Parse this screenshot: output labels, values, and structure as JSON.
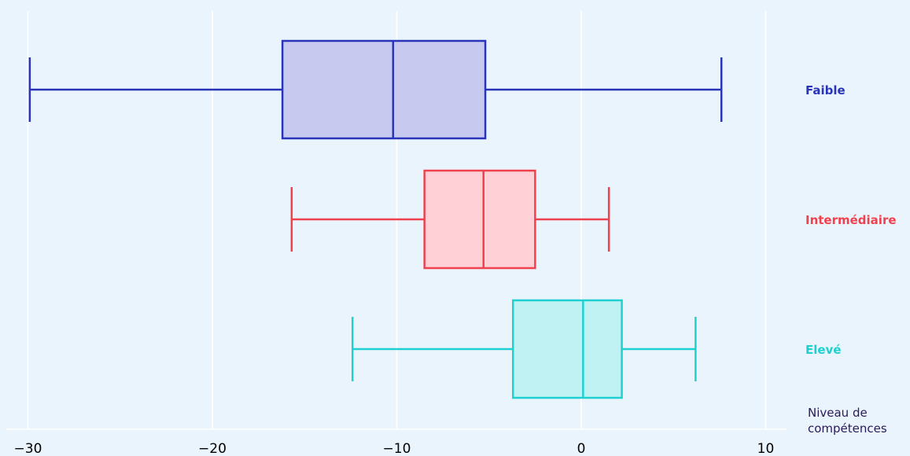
{
  "chart_data": {
    "type": "boxplot",
    "orientation": "horizontal",
    "title": "",
    "xlabel": "",
    "xlim": [
      -30.4,
      10.2
    ],
    "x_ticks": [
      -30,
      -20,
      -10,
      0,
      10
    ],
    "x_tick_labels": [
      "−30",
      "−20",
      "−10",
      "0",
      "10"
    ],
    "grid": "vertical",
    "legend_title": [
      "Niveau de",
      "compétences"
    ],
    "series": [
      {
        "name": "Faible",
        "color": "#2a34b8",
        "fill": "#c7c9ef",
        "whisker_low": -29.9,
        "q1": -16.2,
        "median": -10.2,
        "q3": -5.2,
        "whisker_high": 7.6
      },
      {
        "name": "Intermédiaire",
        "color": "#f0414f",
        "fill": "#ffd0d5",
        "whisker_low": -15.7,
        "q1": -8.5,
        "median": -5.3,
        "q3": -2.5,
        "whisker_high": 1.5
      },
      {
        "name": "Elevé",
        "color": "#1fd0d0",
        "fill": "#c0f2f3",
        "whisker_low": -12.4,
        "q1": -3.7,
        "median": 0.1,
        "q3": 2.2,
        "whisker_high": 6.2
      }
    ]
  }
}
